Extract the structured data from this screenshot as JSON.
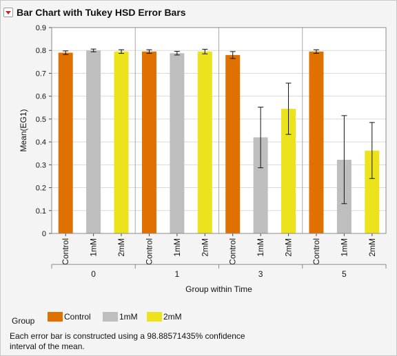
{
  "title": "Bar Chart with Tukey HSD Error Bars",
  "legend": {
    "label": "Group",
    "items": [
      {
        "name": "Control",
        "color": "#e07000"
      },
      {
        "name": "1mM",
        "color": "#bebebe"
      },
      {
        "name": "2mM",
        "color": "#ece31c"
      }
    ]
  },
  "footnote": "Each error bar is constructed using a 98.88571435% confidence interval of the mean.",
  "chart_data": {
    "type": "bar",
    "ylabel": "Mean(EG1)",
    "xlabel": "Group within Time",
    "ylim": [
      0,
      0.9
    ],
    "yticks": [
      "0",
      "0.1",
      "0.2",
      "0.3",
      "0.4",
      "0.5",
      "0.6",
      "0.7",
      "0.8",
      "0.9"
    ],
    "grid": true,
    "groups": [
      "0",
      "1",
      "3",
      "5"
    ],
    "categories": [
      "Control",
      "1mM",
      "2mM"
    ],
    "colors": [
      "#e07000",
      "#bebebe",
      "#ece31c"
    ],
    "series": [
      {
        "group": "0",
        "values": [
          0.79,
          0.8,
          0.795
        ],
        "lower": [
          0.782,
          0.794,
          0.787
        ],
        "upper": [
          0.798,
          0.806,
          0.803
        ]
      },
      {
        "group": "1",
        "values": [
          0.795,
          0.788,
          0.795
        ],
        "lower": [
          0.787,
          0.78,
          0.785
        ],
        "upper": [
          0.803,
          0.796,
          0.805
        ]
      },
      {
        "group": "3",
        "values": [
          0.78,
          0.42,
          0.545
        ],
        "lower": [
          0.765,
          0.287,
          0.433
        ],
        "upper": [
          0.795,
          0.552,
          0.657
        ]
      },
      {
        "group": "5",
        "values": [
          0.795,
          0.322,
          0.362
        ],
        "lower": [
          0.787,
          0.13,
          0.24
        ],
        "upper": [
          0.803,
          0.515,
          0.485
        ]
      }
    ]
  }
}
